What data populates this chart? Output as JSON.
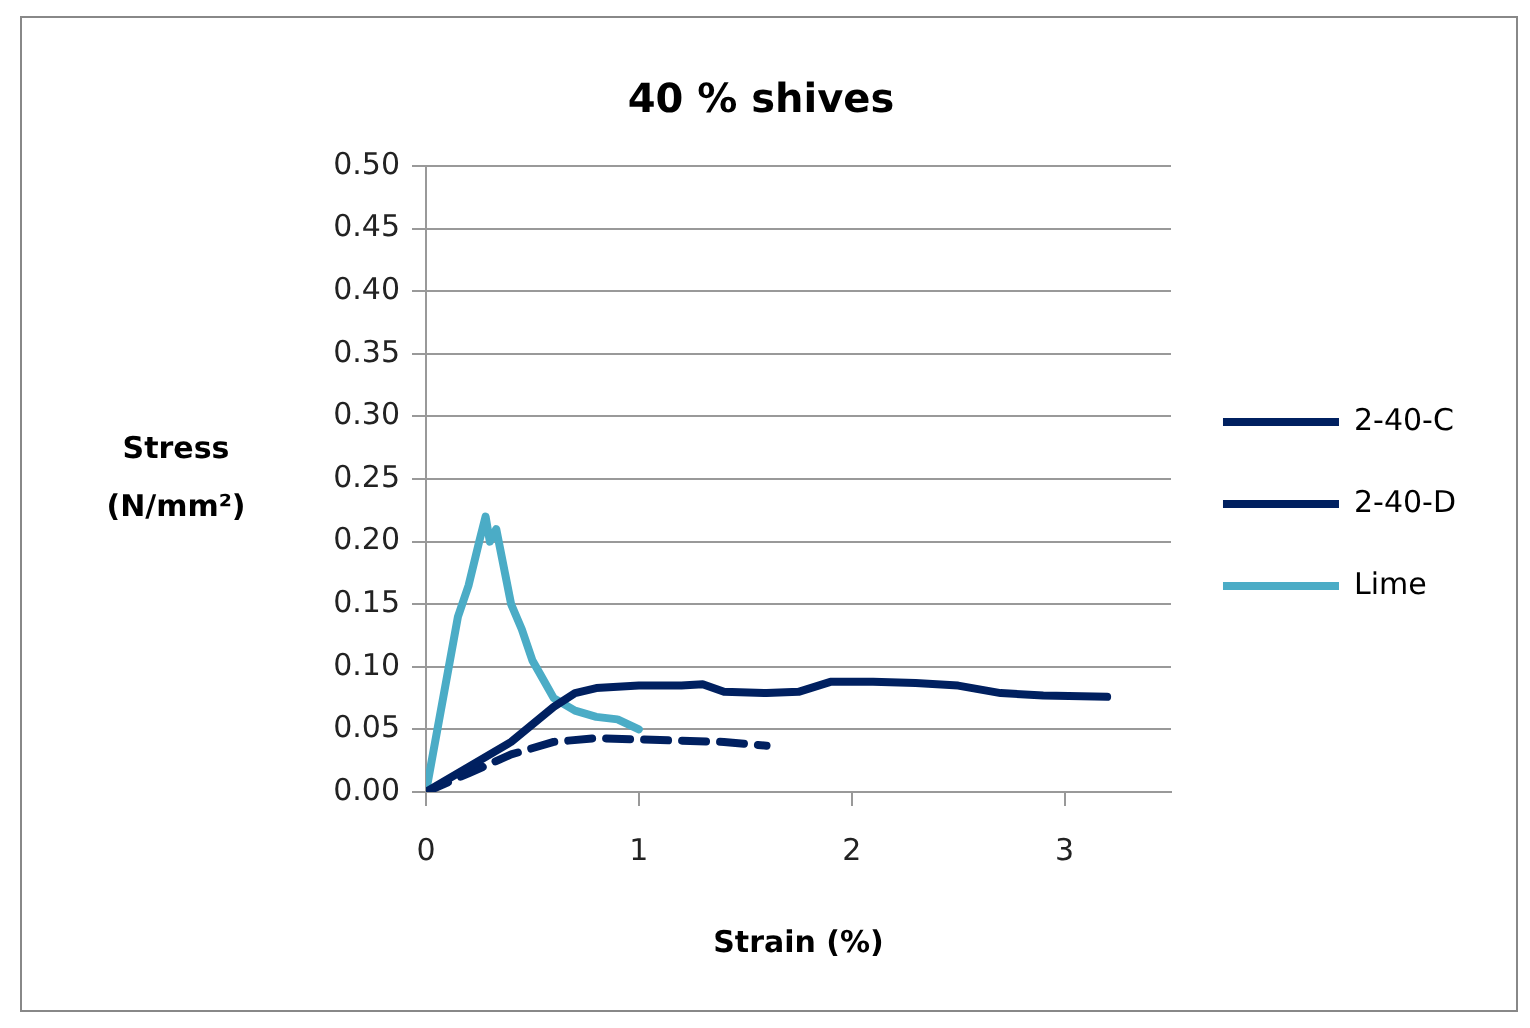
{
  "chart_data": {
    "type": "line",
    "title": "40 % shives",
    "xlabel": "Strain (%)",
    "ylabel": "Stress (N/mm²)",
    "xlim": [
      0,
      3.5
    ],
    "xticks": [
      0,
      1,
      2,
      3
    ],
    "ylim": [
      0,
      0.5
    ],
    "yticks": [
      {
        "value": 0,
        "label": "0.00"
      },
      {
        "value": 0.05,
        "label": "0.05"
      },
      {
        "value": 0.1,
        "label": "0.10"
      },
      {
        "value": 0.15,
        "label": "0.15"
      },
      {
        "value": 0.2,
        "label": "0.20"
      },
      {
        "value": 0.25,
        "label": "0.25"
      },
      {
        "value": 0.3,
        "label": "0.30"
      },
      {
        "value": 0.35,
        "label": "0.35"
      },
      {
        "value": 0.4,
        "label": "0.40"
      },
      {
        "value": 0.45,
        "label": "0.45"
      },
      {
        "value": 0.5,
        "label": "0.50"
      }
    ],
    "grid": "y",
    "legend": "right",
    "marker": "none",
    "series": [
      {
        "name": "2-40-C",
        "color": "#002060",
        "line_style": "solid",
        "x": [
          0,
          0.2,
          0.4,
          0.6,
          0.7,
          0.8,
          1,
          1.2,
          1.3,
          1.4,
          1.6,
          1.75,
          1.9,
          2.1,
          2.3,
          2.5,
          2.7,
          2.9,
          3.2
        ],
        "values": [
          0,
          0.02,
          0.04,
          0.068,
          0.079,
          0.083,
          0.085,
          0.085,
          0.086,
          0.08,
          0.079,
          0.08,
          0.088,
          0.088,
          0.087,
          0.085,
          0.079,
          0.077,
          0.076
        ]
      },
      {
        "name": "2-40-D",
        "color": "#002060",
        "line_style": "dashed",
        "x": [
          0,
          0.2,
          0.4,
          0.6,
          0.8,
          1,
          1.2,
          1.4,
          1.6
        ],
        "values": [
          0,
          0.015,
          0.03,
          0.04,
          0.043,
          0.042,
          0.041,
          0.04,
          0.037
        ]
      },
      {
        "name": "Lime",
        "color": "#4bacc6",
        "line_style": "solid",
        "x": [
          0,
          0.15,
          0.2,
          0.25,
          0.28,
          0.3,
          0.33,
          0.4,
          0.45,
          0.5,
          0.55,
          0.6,
          0.7,
          0.8,
          0.9,
          1.0
        ],
        "values": [
          0,
          0.14,
          0.165,
          0.2,
          0.22,
          0.2,
          0.21,
          0.15,
          0.13,
          0.105,
          0.09,
          0.075,
          0.065,
          0.06,
          0.058,
          0.05
        ]
      }
    ]
  }
}
